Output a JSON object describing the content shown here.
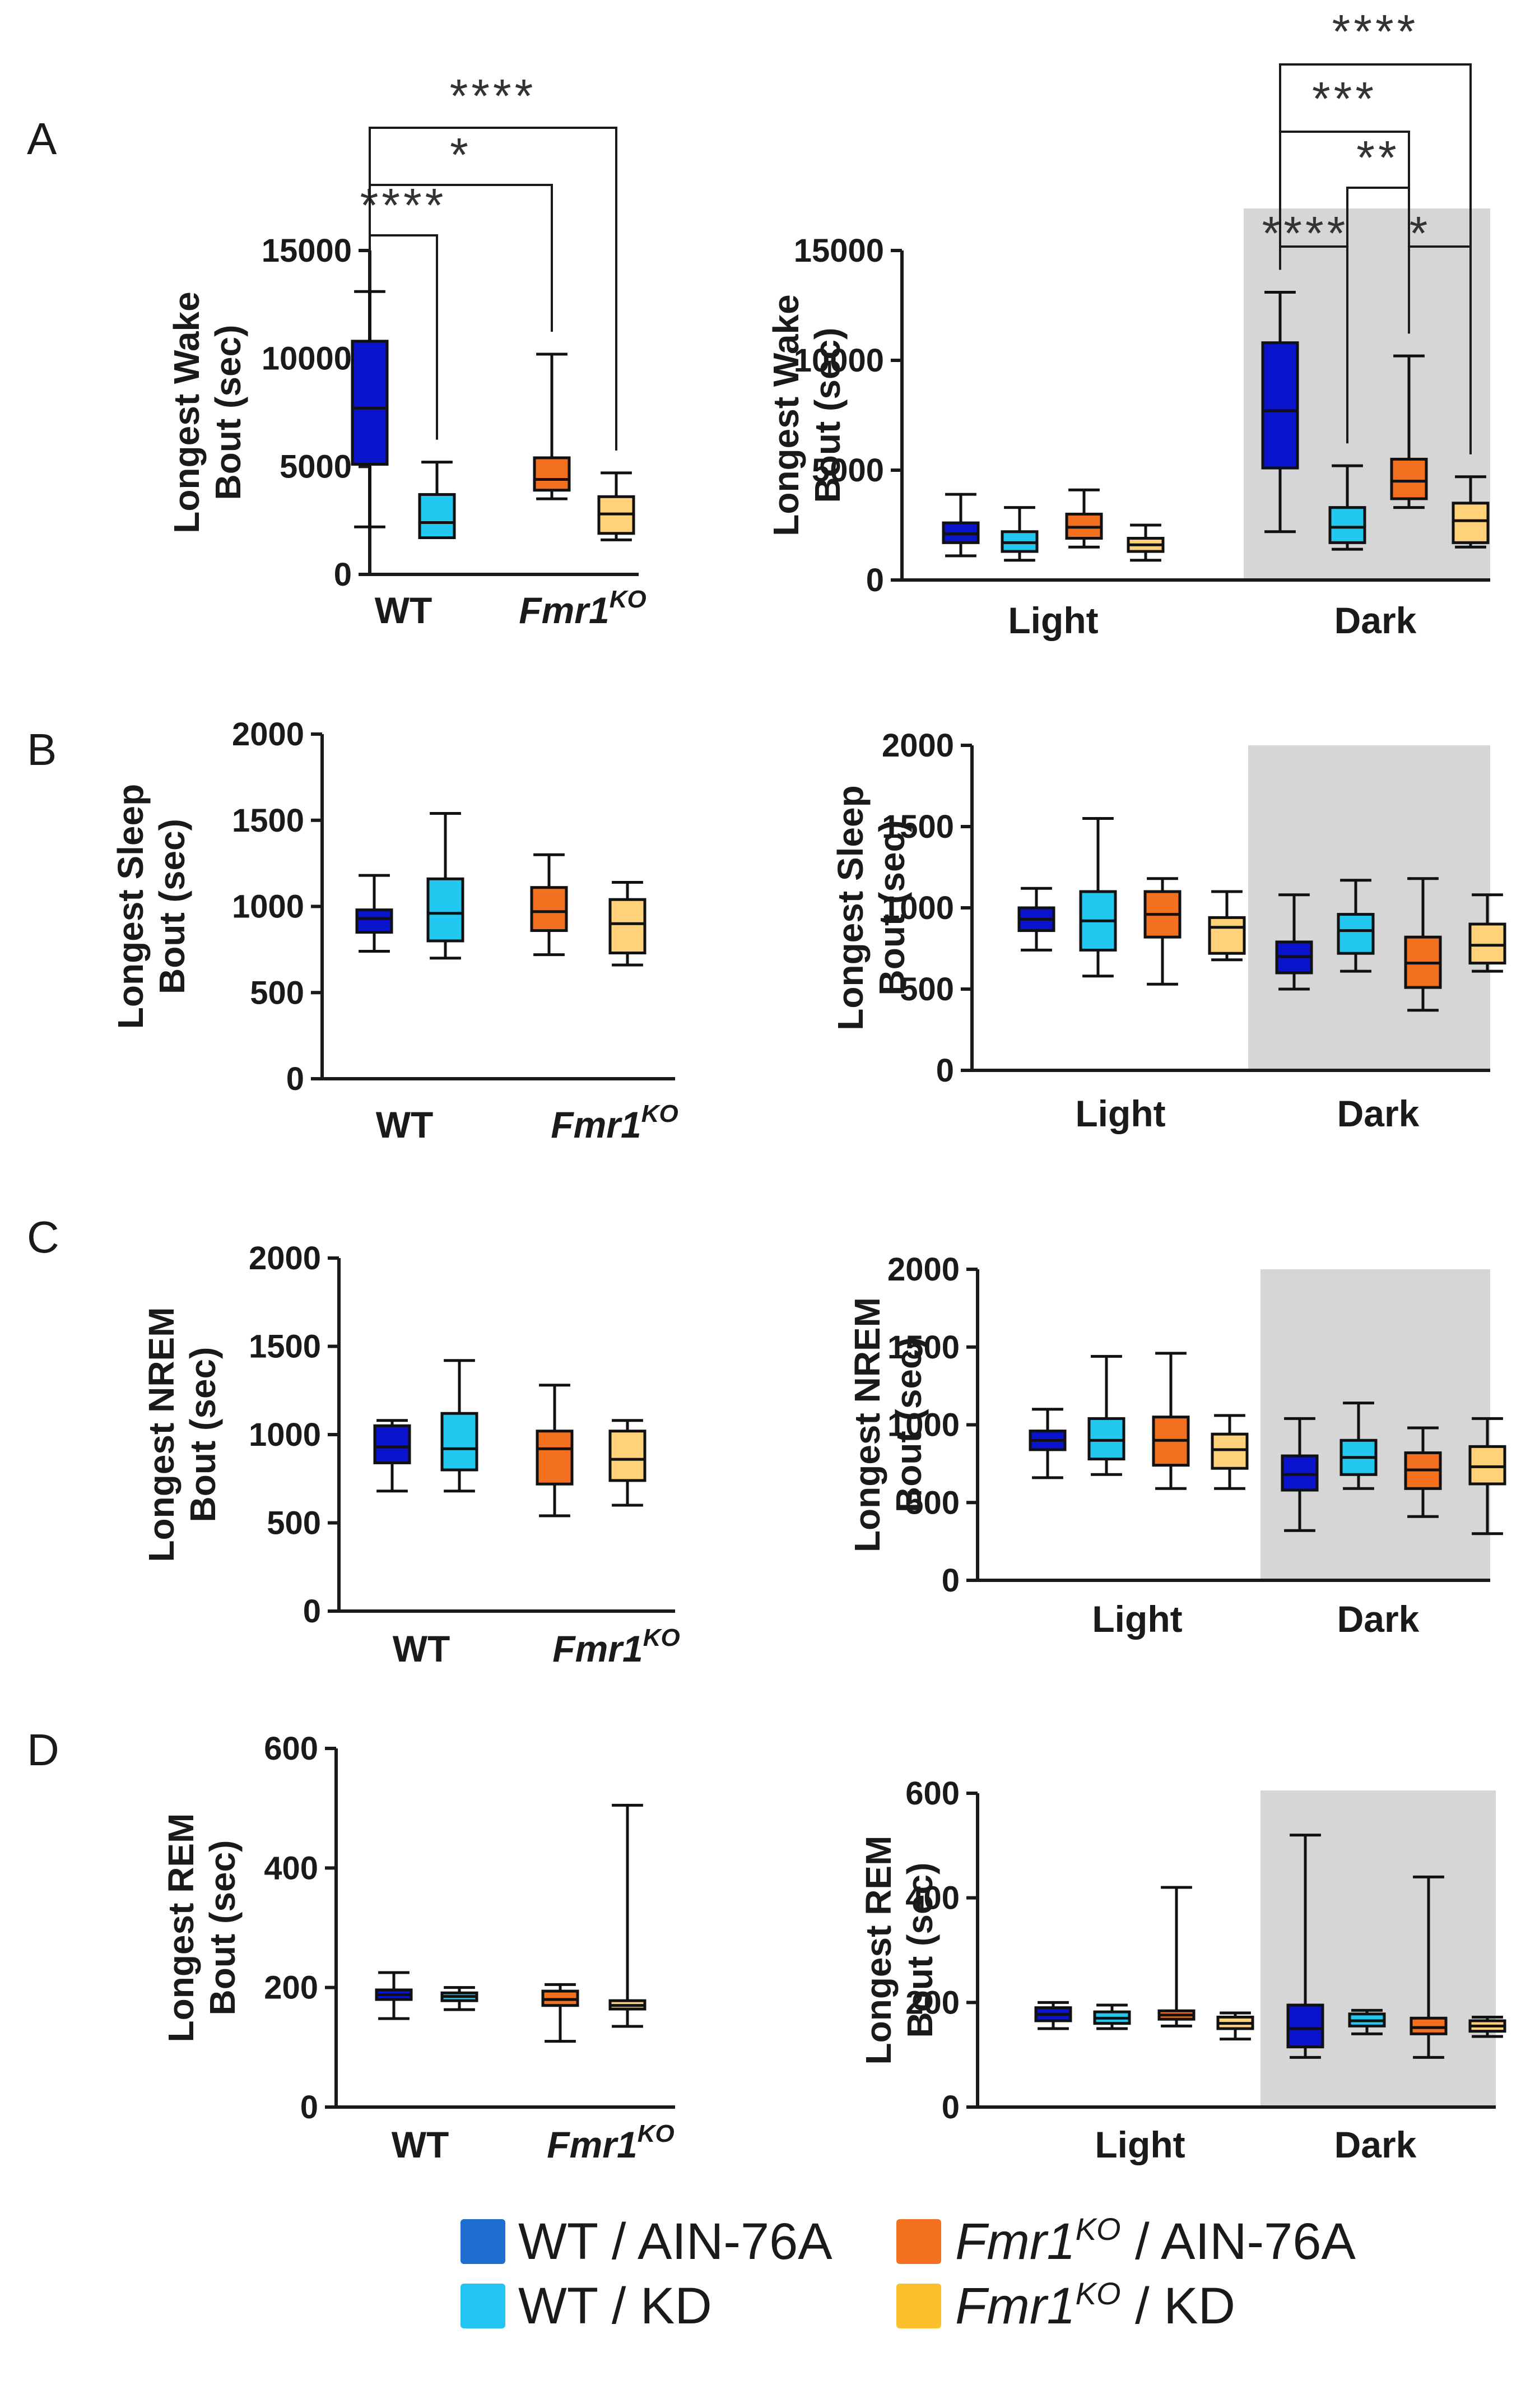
{
  "colors": {
    "wt_ain": "#0a14cc",
    "wt_kd": "#22c8f0",
    "ko_ain": "#f37021",
    "ko_kd": "#ffd27a",
    "dark_shade": "#d6d6d6",
    "legend_wt_ain": "#1f6fd1",
    "legend_wt_kd": "#25c4f2",
    "legend_ko_ain": "#f37021",
    "legend_ko_kd": "#fbc12d"
  },
  "labels": {
    "wt": "WT",
    "fmr1": "Fmr1",
    "ko_sup": "KO",
    "light": "Light",
    "dark": "Dark"
  },
  "legend": {
    "wt_ain": "WT / AIN-76A",
    "wt_kd": "WT / KD",
    "ko_ain_name": "Fmr1",
    "ko_ain_sup": "KO",
    "ko_ain_rest": " / AIN-76A",
    "ko_kd_name": "Fmr1",
    "ko_kd_sup": "KO",
    "ko_kd_rest": " / KD"
  },
  "chart_data": [
    {
      "id": "A-left",
      "panel": "A",
      "type": "boxplot",
      "ylabel": [
        "Longest Wake",
        "Bout (sec)"
      ],
      "ylim": [
        0,
        15000
      ],
      "yticks": [
        0,
        5000,
        10000,
        15000
      ],
      "groups": [
        "WT",
        "Fmr1KO"
      ],
      "series": [
        {
          "name": "WT / AIN-76A",
          "group": "WT",
          "color": "wt_ain",
          "min": 2200,
          "q1": 5100,
          "median": 7700,
          "q3": 10800,
          "max": 13100
        },
        {
          "name": "WT / KD",
          "group": "WT",
          "color": "wt_kd",
          "min": 1700,
          "q1": 1700,
          "median": 2400,
          "q3": 3700,
          "max": 5200
        },
        {
          "name": "Fmr1KO / AIN-76A",
          "group": "Fmr1KO",
          "color": "ko_ain",
          "min": 3500,
          "q1": 3900,
          "median": 4400,
          "q3": 5400,
          "max": 10200
        },
        {
          "name": "Fmr1KO / KD",
          "group": "Fmr1KO",
          "color": "ko_kd",
          "min": 1600,
          "q1": 1900,
          "median": 2800,
          "q3": 3600,
          "max": 4700
        }
      ],
      "significance": [
        {
          "from": 0,
          "to": 1,
          "label": "****"
        },
        {
          "from": 0,
          "to": 2,
          "label": "*"
        },
        {
          "from": 0,
          "to": 3,
          "label": "****"
        }
      ]
    },
    {
      "id": "A-right",
      "panel": "A",
      "type": "boxplot",
      "ylabel": [
        "Longest Wake",
        "Bout (sec)"
      ],
      "ylim": [
        0,
        15000
      ],
      "yticks": [
        0,
        5000,
        10000,
        15000
      ],
      "groups": [
        "Light",
        "Dark"
      ],
      "shaded_group": "Dark",
      "series": [
        {
          "name": "WT / AIN-76A",
          "group": "Light",
          "color": "wt_ain",
          "min": 1100,
          "q1": 1700,
          "median": 2100,
          "q3": 2600,
          "max": 3900
        },
        {
          "name": "WT / KD",
          "group": "Light",
          "color": "wt_kd",
          "min": 900,
          "q1": 1300,
          "median": 1700,
          "q3": 2200,
          "max": 3300
        },
        {
          "name": "Fmr1KO / AIN-76A",
          "group": "Light",
          "color": "ko_ain",
          "min": 1500,
          "q1": 1900,
          "median": 2400,
          "q3": 3000,
          "max": 4100
        },
        {
          "name": "Fmr1KO / KD",
          "group": "Light",
          "color": "ko_kd",
          "min": 900,
          "q1": 1300,
          "median": 1600,
          "q3": 1900,
          "max": 2500
        },
        {
          "name": "WT / AIN-76A",
          "group": "Dark",
          "color": "wt_ain",
          "min": 2200,
          "q1": 5100,
          "median": 7700,
          "q3": 10800,
          "max": 13100
        },
        {
          "name": "WT / KD",
          "group": "Dark",
          "color": "wt_kd",
          "min": 1400,
          "q1": 1700,
          "median": 2400,
          "q3": 3300,
          "max": 5200
        },
        {
          "name": "Fmr1KO / AIN-76A",
          "group": "Dark",
          "color": "ko_ain",
          "min": 3300,
          "q1": 3700,
          "median": 4500,
          "q3": 5500,
          "max": 10200
        },
        {
          "name": "Fmr1KO / KD",
          "group": "Dark",
          "color": "ko_kd",
          "min": 1500,
          "q1": 1700,
          "median": 2700,
          "q3": 3500,
          "max": 4700
        }
      ],
      "significance": [
        {
          "from": 4,
          "to": 5,
          "label": "****"
        },
        {
          "from": 6,
          "to": 7,
          "label": "*"
        },
        {
          "from": 5,
          "to": 6,
          "label": "**"
        },
        {
          "from": 4,
          "to": 6,
          "label": "***"
        },
        {
          "from": 4,
          "to": 7,
          "label": "****"
        }
      ]
    },
    {
      "id": "B-left",
      "panel": "B",
      "type": "boxplot",
      "ylabel": [
        "Longest Sleep",
        "Bout (sec)"
      ],
      "ylim": [
        0,
        2000
      ],
      "yticks": [
        0,
        500,
        1000,
        1500,
        2000
      ],
      "groups": [
        "WT",
        "Fmr1KO"
      ],
      "series": [
        {
          "name": "WT / AIN-76A",
          "group": "WT",
          "color": "wt_ain",
          "min": 740,
          "q1": 850,
          "median": 930,
          "q3": 980,
          "max": 1180
        },
        {
          "name": "WT / KD",
          "group": "WT",
          "color": "wt_kd",
          "min": 700,
          "q1": 800,
          "median": 960,
          "q3": 1160,
          "max": 1540
        },
        {
          "name": "Fmr1KO / AIN-76A",
          "group": "Fmr1KO",
          "color": "ko_ain",
          "min": 720,
          "q1": 860,
          "median": 970,
          "q3": 1110,
          "max": 1300
        },
        {
          "name": "Fmr1KO / KD",
          "group": "Fmr1KO",
          "color": "ko_kd",
          "min": 660,
          "q1": 730,
          "median": 900,
          "q3": 1040,
          "max": 1140
        }
      ]
    },
    {
      "id": "B-right",
      "panel": "B",
      "type": "boxplot",
      "ylabel": [
        "Longest Sleep",
        "Bout (sec)"
      ],
      "ylim": [
        0,
        2000
      ],
      "yticks": [
        0,
        500,
        1000,
        1500,
        2000
      ],
      "groups": [
        "Light",
        "Dark"
      ],
      "shaded_group": "Dark",
      "series": [
        {
          "name": "WT / AIN-76A",
          "group": "Light",
          "color": "wt_ain",
          "min": 740,
          "q1": 860,
          "median": 930,
          "q3": 1000,
          "max": 1120
        },
        {
          "name": "WT / KD",
          "group": "Light",
          "color": "wt_kd",
          "min": 580,
          "q1": 740,
          "median": 920,
          "q3": 1100,
          "max": 1550
        },
        {
          "name": "Fmr1KO / AIN-76A",
          "group": "Light",
          "color": "ko_ain",
          "min": 530,
          "q1": 820,
          "median": 960,
          "q3": 1100,
          "max": 1180
        },
        {
          "name": "Fmr1KO / KD",
          "group": "Light",
          "color": "ko_kd",
          "min": 680,
          "q1": 720,
          "median": 880,
          "q3": 940,
          "max": 1100
        },
        {
          "name": "WT / AIN-76A",
          "group": "Dark",
          "color": "wt_ain",
          "min": 500,
          "q1": 600,
          "median": 700,
          "q3": 790,
          "max": 1080
        },
        {
          "name": "WT / KD",
          "group": "Dark",
          "color": "wt_kd",
          "min": 610,
          "q1": 720,
          "median": 860,
          "q3": 960,
          "max": 1170
        },
        {
          "name": "Fmr1KO / AIN-76A",
          "group": "Dark",
          "color": "ko_ain",
          "min": 370,
          "q1": 510,
          "median": 660,
          "q3": 820,
          "max": 1180
        },
        {
          "name": "Fmr1KO / KD",
          "group": "Dark",
          "color": "ko_kd",
          "min": 610,
          "q1": 660,
          "median": 770,
          "q3": 900,
          "max": 1080
        }
      ]
    },
    {
      "id": "C-left",
      "panel": "C",
      "type": "boxplot",
      "ylabel": [
        "Longest NREM",
        "Bout (sec)"
      ],
      "ylim": [
        0,
        2000
      ],
      "yticks": [
        0,
        500,
        1000,
        1500,
        2000
      ],
      "groups": [
        "WT",
        "Fmr1KO"
      ],
      "series": [
        {
          "name": "WT / AIN-76A",
          "group": "WT",
          "color": "wt_ain",
          "min": 680,
          "q1": 840,
          "median": 930,
          "q3": 1050,
          "max": 1080
        },
        {
          "name": "WT / KD",
          "group": "WT",
          "color": "wt_kd",
          "min": 680,
          "q1": 800,
          "median": 920,
          "q3": 1120,
          "max": 1420
        },
        {
          "name": "Fmr1KO / AIN-76A",
          "group": "Fmr1KO",
          "color": "ko_ain",
          "min": 540,
          "q1": 720,
          "median": 920,
          "q3": 1020,
          "max": 1280
        },
        {
          "name": "Fmr1KO / KD",
          "group": "Fmr1KO",
          "color": "ko_kd",
          "min": 600,
          "q1": 740,
          "median": 860,
          "q3": 1020,
          "max": 1080
        }
      ]
    },
    {
      "id": "C-right",
      "panel": "C",
      "type": "boxplot",
      "ylabel": [
        "Longest NREM",
        "Bout (sec)"
      ],
      "ylim": [
        0,
        2000
      ],
      "yticks": [
        0,
        500,
        1000,
        1500,
        2000
      ],
      "groups": [
        "Light",
        "Dark"
      ],
      "shaded_group": "Dark",
      "series": [
        {
          "name": "WT / AIN-76A",
          "group": "Light",
          "color": "wt_ain",
          "min": 660,
          "q1": 840,
          "median": 900,
          "q3": 960,
          "max": 1100
        },
        {
          "name": "WT / KD",
          "group": "Light",
          "color": "wt_kd",
          "min": 680,
          "q1": 780,
          "median": 900,
          "q3": 1040,
          "max": 1440
        },
        {
          "name": "Fmr1KO / AIN-76A",
          "group": "Light",
          "color": "ko_ain",
          "min": 590,
          "q1": 740,
          "median": 900,
          "q3": 1050,
          "max": 1460
        },
        {
          "name": "Fmr1KO / KD",
          "group": "Light",
          "color": "ko_kd",
          "min": 590,
          "q1": 720,
          "median": 840,
          "q3": 940,
          "max": 1060
        },
        {
          "name": "WT / AIN-76A",
          "group": "Dark",
          "color": "wt_ain",
          "min": 320,
          "q1": 580,
          "median": 680,
          "q3": 800,
          "max": 1040
        },
        {
          "name": "WT / KD",
          "group": "Dark",
          "color": "wt_kd",
          "min": 590,
          "q1": 680,
          "median": 790,
          "q3": 900,
          "max": 1140
        },
        {
          "name": "Fmr1KO / AIN-76A",
          "group": "Dark",
          "color": "ko_ain",
          "min": 410,
          "q1": 590,
          "median": 710,
          "q3": 820,
          "max": 980
        },
        {
          "name": "Fmr1KO / KD",
          "group": "Dark",
          "color": "ko_kd",
          "min": 300,
          "q1": 620,
          "median": 730,
          "q3": 860,
          "max": 1040
        }
      ]
    },
    {
      "id": "D-left",
      "panel": "D",
      "type": "boxplot",
      "ylabel": [
        "Longest REM",
        "Bout (sec)"
      ],
      "ylim": [
        0,
        600
      ],
      "yticks": [
        0,
        200,
        400,
        600
      ],
      "groups": [
        "WT",
        "Fmr1KO"
      ],
      "series": [
        {
          "name": "WT / AIN-76A",
          "group": "WT",
          "color": "wt_ain",
          "min": 148,
          "q1": 180,
          "median": 188,
          "q3": 196,
          "max": 225
        },
        {
          "name": "WT / KD",
          "group": "WT",
          "color": "wt_kd",
          "min": 163,
          "q1": 178,
          "median": 185,
          "q3": 191,
          "max": 200
        },
        {
          "name": "Fmr1KO / AIN-76A",
          "group": "Fmr1KO",
          "color": "ko_ain",
          "min": 110,
          "q1": 170,
          "median": 180,
          "q3": 194,
          "max": 205
        },
        {
          "name": "Fmr1KO / KD",
          "group": "Fmr1KO",
          "color": "ko_kd",
          "min": 135,
          "q1": 164,
          "median": 170,
          "q3": 178,
          "max": 505
        }
      ]
    },
    {
      "id": "D-right",
      "panel": "D",
      "type": "boxplot",
      "ylabel": [
        "Longest REM",
        "Bout (sec)"
      ],
      "ylim": [
        0,
        600
      ],
      "yticks": [
        0,
        200,
        400,
        600
      ],
      "groups": [
        "Light",
        "Dark"
      ],
      "shaded_group": "Dark",
      "series": [
        {
          "name": "WT / AIN-76A",
          "group": "Light",
          "color": "wt_ain",
          "min": 150,
          "q1": 165,
          "median": 177,
          "q3": 190,
          "max": 200
        },
        {
          "name": "WT / KD",
          "group": "Light",
          "color": "wt_kd",
          "min": 150,
          "q1": 160,
          "median": 170,
          "q3": 182,
          "max": 195
        },
        {
          "name": "Fmr1KO / AIN-76A",
          "group": "Light",
          "color": "ko_ain",
          "min": 155,
          "q1": 168,
          "median": 176,
          "q3": 184,
          "max": 420
        },
        {
          "name": "Fmr1KO / KD",
          "group": "Light",
          "color": "ko_kd",
          "min": 130,
          "q1": 150,
          "median": 160,
          "q3": 172,
          "max": 180
        },
        {
          "name": "WT / AIN-76A",
          "group": "Dark",
          "color": "wt_ain",
          "min": 95,
          "q1": 115,
          "median": 150,
          "q3": 195,
          "max": 520
        },
        {
          "name": "WT / KD",
          "group": "Dark",
          "color": "wt_kd",
          "min": 140,
          "q1": 155,
          "median": 165,
          "q3": 178,
          "max": 185
        },
        {
          "name": "Fmr1KO / AIN-76A",
          "group": "Dark",
          "color": "ko_ain",
          "min": 95,
          "q1": 140,
          "median": 152,
          "q3": 170,
          "max": 440
        },
        {
          "name": "Fmr1KO / KD",
          "group": "Dark",
          "color": "ko_kd",
          "min": 135,
          "q1": 145,
          "median": 155,
          "q3": 165,
          "max": 172
        }
      ]
    }
  ]
}
